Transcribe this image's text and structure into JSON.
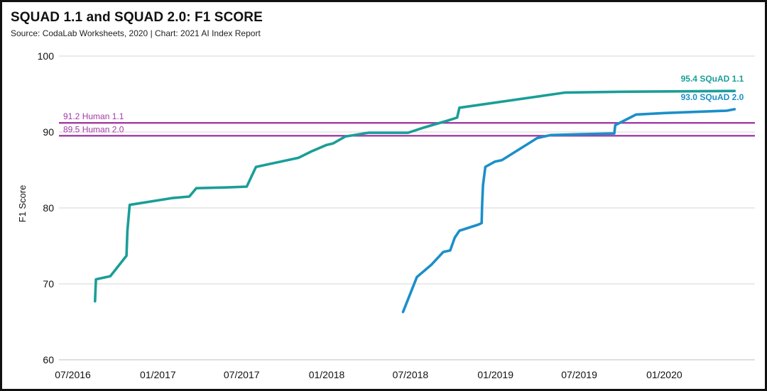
{
  "chart_data": {
    "type": "line",
    "title": "SQUAD 1.1 and SQUAD 2.0: F1 SCORE",
    "subtitle": "Source: CodaLab Worksheets, 2020 | Chart: 2021 AI Index Report",
    "xlabel": "",
    "ylabel": "F1 Score",
    "ylim": [
      60,
      100
    ],
    "yticks": [
      "60",
      "70",
      "80",
      "90",
      "100"
    ],
    "xticks": [
      "07/2016",
      "01/2017",
      "07/2017",
      "01/2018",
      "07/2018",
      "01/2019",
      "07/2019",
      "01/2020"
    ],
    "xlim": [
      "2016-06-01",
      "2020-07-15"
    ],
    "grid": true,
    "series": [
      {
        "name": "SQuAD 1.1",
        "color": "#1a9e97",
        "end_label": "95.4 SQuAD 1.1",
        "points": [
          [
            "2016-08-18",
            67.7
          ],
          [
            "2016-08-20",
            70.6
          ],
          [
            "2016-09-20",
            71.0
          ],
          [
            "2016-10-25",
            73.7
          ],
          [
            "2016-10-27",
            77.0
          ],
          [
            "2016-11-01",
            80.4
          ],
          [
            "2017-02-01",
            81.3
          ],
          [
            "2017-03-10",
            81.5
          ],
          [
            "2017-03-25",
            82.6
          ],
          [
            "2017-06-01",
            82.7
          ],
          [
            "2017-07-12",
            82.8
          ],
          [
            "2017-08-01",
            85.4
          ],
          [
            "2017-11-01",
            86.6
          ],
          [
            "2017-12-01",
            87.5
          ],
          [
            "2018-01-01",
            88.3
          ],
          [
            "2018-01-15",
            88.5
          ],
          [
            "2018-02-10",
            89.4
          ],
          [
            "2018-04-01",
            89.9
          ],
          [
            "2018-06-26",
            89.9
          ],
          [
            "2018-07-31",
            90.6
          ],
          [
            "2018-09-20",
            91.5
          ],
          [
            "2018-10-10",
            91.9
          ],
          [
            "2018-10-15",
            93.2
          ],
          [
            "2019-06-01",
            95.2
          ],
          [
            "2019-10-01",
            95.3
          ],
          [
            "2020-06-01",
            95.4
          ]
        ]
      },
      {
        "name": "SQuAD 2.0",
        "color": "#1b8fc9",
        "end_label": "93.0 SQuAD 2.0",
        "points": [
          [
            "2018-06-15",
            66.3
          ],
          [
            "2018-07-15",
            70.9
          ],
          [
            "2018-08-15",
            72.5
          ],
          [
            "2018-09-10",
            74.2
          ],
          [
            "2018-09-25",
            74.4
          ],
          [
            "2018-10-05",
            76.1
          ],
          [
            "2018-10-15",
            77.0
          ],
          [
            "2018-11-25",
            77.8
          ],
          [
            "2018-12-02",
            78.0
          ],
          [
            "2018-12-03",
            80.2
          ],
          [
            "2018-12-05",
            83.0
          ],
          [
            "2018-12-10",
            85.4
          ],
          [
            "2018-12-31",
            86.1
          ],
          [
            "2019-01-15",
            86.3
          ],
          [
            "2019-04-01",
            89.2
          ],
          [
            "2019-05-01",
            89.6
          ],
          [
            "2019-07-01",
            89.7
          ],
          [
            "2019-09-15",
            89.8
          ],
          [
            "2019-09-17",
            90.9
          ],
          [
            "2019-11-01",
            92.3
          ],
          [
            "2020-01-01",
            92.5
          ],
          [
            "2020-05-15",
            92.8
          ],
          [
            "2020-06-01",
            93.0
          ]
        ]
      }
    ],
    "reference_lines": [
      {
        "value": 91.2,
        "label": "91.2 Human 1.1",
        "color": "#a03aa5"
      },
      {
        "value": 89.5,
        "label": "89.5 Human 2.0",
        "color": "#a03aa5"
      }
    ]
  }
}
